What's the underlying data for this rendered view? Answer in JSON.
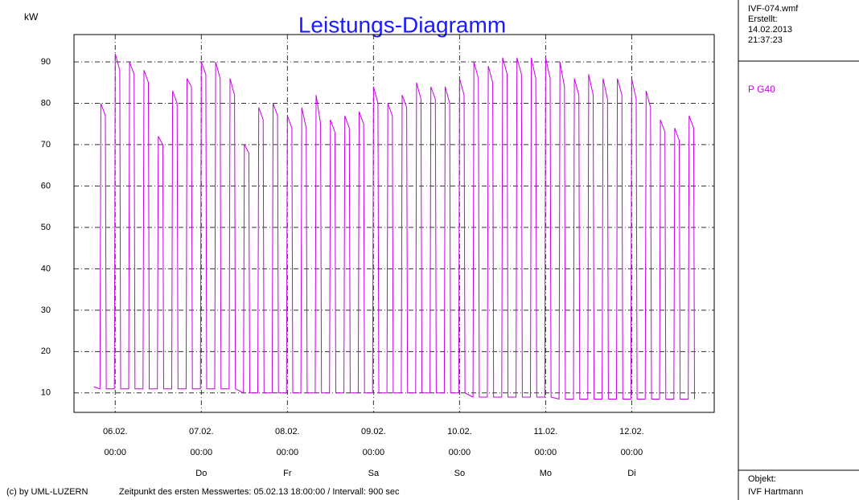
{
  "info": {
    "file": "IVF-074.wmf",
    "created_label": "Erstellt:",
    "created_date": "14.02.2013",
    "created_time": "21:37:23",
    "copyright": "(c) by UML-LUZERN",
    "footnote": "Zeitpunkt des ersten Messwertes: 05.02.13 18:00:00 / Intervall: 900 sec",
    "object_label": "Objekt:",
    "object": "IVF Hartmann"
  },
  "chart_data": {
    "type": "line",
    "title": "Leistungs-Diagramm",
    "y_label": "kW",
    "x": [
      "05.02. 18:00",
      "05.02. 19:45",
      "05.02. 20:00",
      "05.02. 21:15",
      "05.02. 21:30",
      "05.02. 23:45",
      "06.02. 00:00",
      "06.02. 01:15",
      "06.02. 01:30",
      "06.02. 03:45",
      "06.02. 04:00",
      "06.02. 05:15",
      "06.02. 05:30",
      "06.02. 07:45",
      "06.02. 08:00",
      "06.02. 09:15",
      "06.02. 09:30",
      "06.02. 11:45",
      "06.02. 12:00",
      "06.02. 13:15",
      "06.02. 13:30",
      "06.02. 15:45",
      "06.02. 16:00",
      "06.02. 17:15",
      "06.02. 17:30",
      "06.02. 19:45",
      "06.02. 20:00",
      "06.02. 21:15",
      "06.02. 21:30",
      "06.02. 23:45",
      "07.02. 00:00",
      "07.02. 01:15",
      "07.02. 01:30",
      "07.02. 03:45",
      "07.02. 04:00",
      "07.02. 05:15",
      "07.02. 05:30",
      "07.02. 07:45",
      "07.02. 08:00",
      "07.02. 09:15",
      "07.02. 09:30",
      "07.02. 11:45",
      "07.02. 12:00",
      "07.02. 13:15",
      "07.02. 13:30",
      "07.02. 15:45",
      "07.02. 16:00",
      "07.02. 17:15",
      "07.02. 17:30",
      "07.02. 19:45",
      "07.02. 20:00",
      "07.02. 21:15",
      "07.02. 21:30",
      "07.02. 23:45",
      "08.02. 00:00",
      "08.02. 01:15",
      "08.02. 01:30",
      "08.02. 03:45",
      "08.02. 04:00",
      "08.02. 05:15",
      "08.02. 05:30",
      "08.02. 07:45",
      "08.02. 08:00",
      "08.02. 09:15",
      "08.02. 09:30",
      "08.02. 11:45",
      "08.02. 12:00",
      "08.02. 13:15",
      "08.02. 13:30",
      "08.02. 15:45",
      "08.02. 16:00",
      "08.02. 17:15",
      "08.02. 17:30",
      "08.02. 19:45",
      "08.02. 20:00",
      "08.02. 21:15",
      "08.02. 21:30",
      "08.02. 23:45",
      "09.02. 00:00",
      "09.02. 01:15",
      "09.02. 01:30",
      "09.02. 03:45",
      "09.02. 04:00",
      "09.02. 05:15",
      "09.02. 05:30",
      "09.02. 07:45",
      "09.02. 08:00",
      "09.02. 09:15",
      "09.02. 09:30",
      "09.02. 11:45",
      "09.02. 12:00",
      "09.02. 13:15",
      "09.02. 13:30",
      "09.02. 15:45",
      "09.02. 16:00",
      "09.02. 17:15",
      "09.02. 17:30",
      "09.02. 19:45",
      "09.02. 20:00",
      "09.02. 21:15",
      "09.02. 21:30",
      "09.02. 23:45",
      "10.02. 00:00",
      "10.02. 01:15",
      "10.02. 01:30",
      "10.02. 03:45",
      "10.02. 04:00",
      "10.02. 05:15",
      "10.02. 05:30",
      "10.02. 07:45",
      "10.02. 08:00",
      "10.02. 09:15",
      "10.02. 09:30",
      "10.02. 11:45",
      "10.02. 12:00",
      "10.02. 13:15",
      "10.02. 13:30",
      "10.02. 15:45",
      "10.02. 16:00",
      "10.02. 17:15",
      "10.02. 17:30",
      "10.02. 19:45",
      "10.02. 20:00",
      "10.02. 21:15",
      "10.02. 21:30",
      "10.02. 23:45",
      "11.02. 00:00",
      "11.02. 01:15",
      "11.02. 01:30",
      "11.02. 03:45",
      "11.02. 04:00",
      "11.02. 05:15",
      "11.02. 05:30",
      "11.02. 07:45",
      "11.02. 08:00",
      "11.02. 09:15",
      "11.02. 09:30",
      "11.02. 11:45",
      "11.02. 12:00",
      "11.02. 13:15",
      "11.02. 13:30",
      "11.02. 15:45",
      "11.02. 16:00",
      "11.02. 17:15",
      "11.02. 17:30",
      "11.02. 19:45",
      "11.02. 20:00",
      "11.02. 21:15",
      "11.02. 21:30",
      "11.02. 23:45",
      "12.02. 00:00",
      "12.02. 01:15",
      "12.02. 01:30",
      "12.02. 03:45",
      "12.02. 04:00",
      "12.02. 05:15",
      "12.02. 05:30",
      "12.02. 07:45",
      "12.02. 08:00",
      "12.02. 09:15",
      "12.02. 09:30",
      "12.02. 11:45",
      "12.02. 12:00",
      "12.02. 13:15",
      "12.02. 13:30",
      "12.02. 15:45",
      "12.02. 16:00",
      "12.02. 17:15",
      "12.02. 17:30"
    ],
    "series": [
      {
        "name": "P  G40",
        "color": "#c800e6",
        "values": [
          11.5,
          11,
          80,
          77,
          11,
          11,
          92,
          88,
          11,
          11,
          90,
          87,
          11,
          11,
          88,
          85,
          11,
          11,
          72,
          70,
          11,
          11,
          83,
          80,
          11,
          11,
          86,
          84,
          11,
          11,
          90,
          87,
          11,
          11,
          90,
          86,
          11,
          11,
          86,
          82,
          11,
          10,
          70,
          68,
          10,
          10,
          79,
          76,
          10,
          10,
          80,
          77,
          10,
          10,
          77,
          74,
          10,
          10,
          79,
          74,
          10,
          10,
          82,
          75,
          10,
          10,
          76,
          73,
          10,
          10,
          77,
          74,
          10,
          10,
          78,
          75,
          10,
          10,
          84,
          80,
          10,
          10,
          80,
          77,
          10,
          10,
          82,
          79,
          10,
          10,
          85,
          81,
          10,
          10,
          84,
          81,
          10,
          10,
          84,
          80,
          10,
          10,
          86,
          82,
          10,
          9,
          90,
          86,
          9,
          9,
          89,
          85,
          9,
          9,
          91,
          87,
          9,
          9,
          91,
          87,
          9,
          9,
          91,
          86,
          9,
          9,
          91,
          86,
          9,
          8.5,
          90,
          84,
          8.5,
          8.5,
          86,
          82,
          8.5,
          8.5,
          87,
          82,
          8.5,
          8.5,
          86,
          81,
          8.5,
          8.5,
          86,
          82,
          8.5,
          8.5,
          86,
          81,
          8.5,
          8.5,
          83,
          79,
          8.5,
          8.5,
          76,
          73,
          8.5,
          8.5,
          74,
          71,
          8.5,
          8.5,
          77,
          74,
          8.5
        ]
      }
    ],
    "ylim": [
      5.3,
      96.6
    ],
    "yticks": [
      10,
      20,
      30,
      40,
      50,
      60,
      70,
      80,
      90
    ],
    "xlim": [
      "05.02. 12:30",
      "12.02. 23:00"
    ],
    "xticks": [
      {
        "value": "06.02. 00:00",
        "label": "06.02.",
        "time": "00:00",
        "day": null
      },
      {
        "value": "07.02. 00:00",
        "label": "07.02.",
        "time": "00:00",
        "day": "Do"
      },
      {
        "value": "08.02. 00:00",
        "label": "08.02.",
        "time": "00:00",
        "day": "Fr"
      },
      {
        "value": "09.02. 00:00",
        "label": "09.02.",
        "time": "00:00",
        "day": "Sa"
      },
      {
        "value": "10.02. 00:00",
        "label": "10.02.",
        "time": "00:00",
        "day": "So"
      },
      {
        "value": "11.02. 00:00",
        "label": "11.02.",
        "time": "00:00",
        "day": "Mo"
      },
      {
        "value": "12.02. 00:00",
        "label": "12.02.",
        "time": "00:00",
        "day": "Di"
      }
    ],
    "grid": true
  }
}
